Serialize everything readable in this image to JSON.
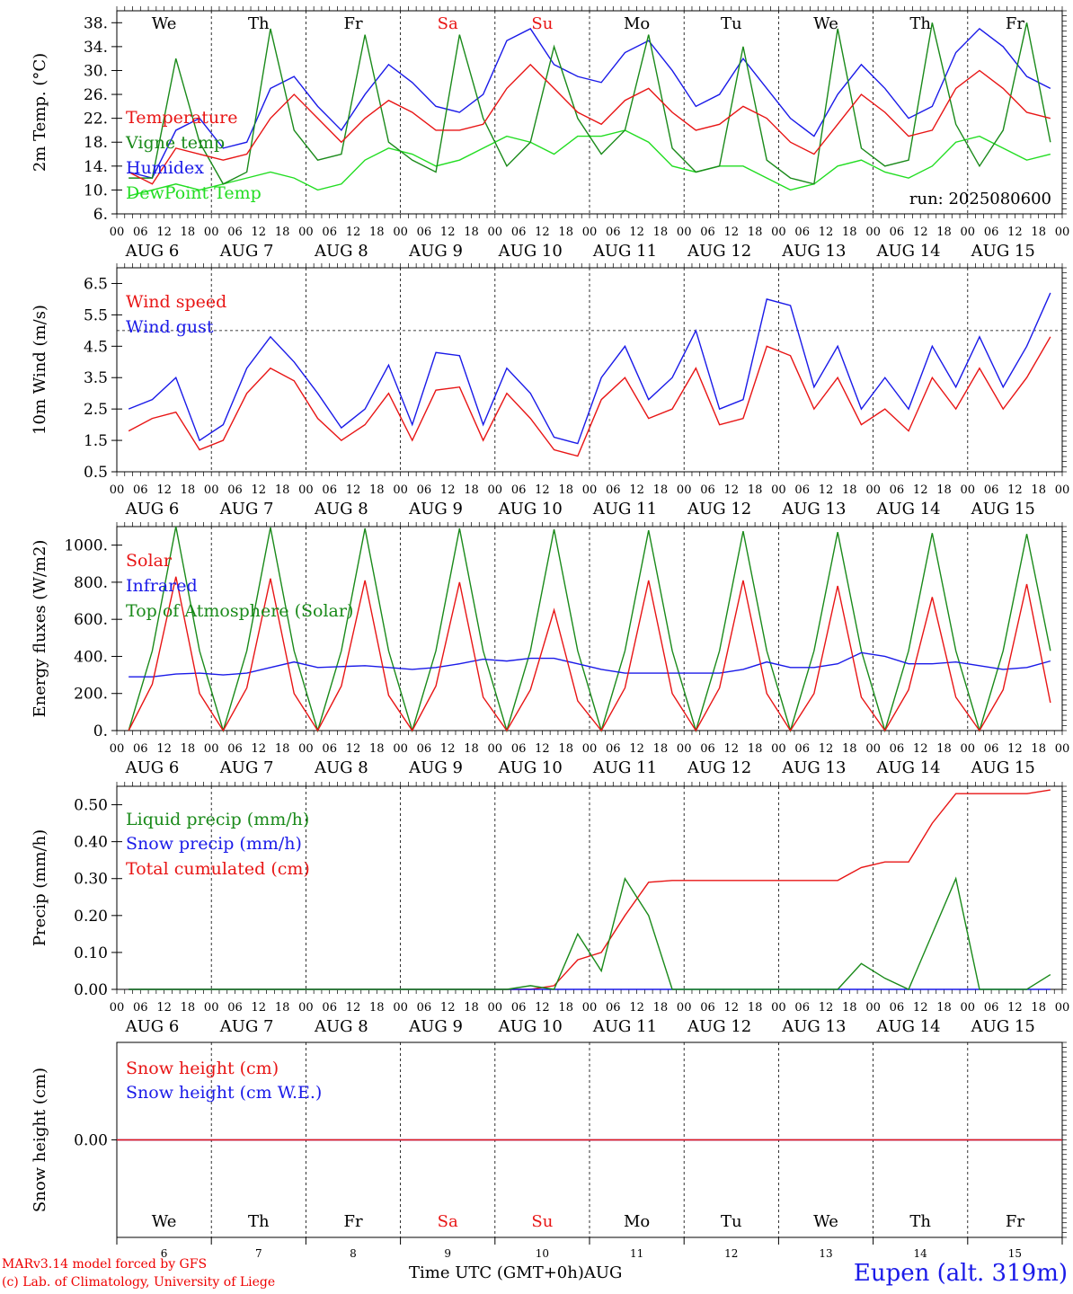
{
  "colors": {
    "red": "#e81515",
    "green": "#1a8a1a",
    "blue": "#1a1ae8",
    "light_green": "#22dd22",
    "black": "#000000"
  },
  "days": [
    "We",
    "Th",
    "Fr",
    "Sa",
    "Su",
    "Mo",
    "Tu",
    "We",
    "Th",
    "Fr"
  ],
  "day_colors": [
    "black",
    "black",
    "black",
    "red",
    "red",
    "black",
    "black",
    "black",
    "black",
    "black"
  ],
  "dates": [
    "AUG  6",
    "AUG  7",
    "AUG  8",
    "AUG  9",
    "AUG 10",
    "AUG 11",
    "AUG 12",
    "AUG 13",
    "AUG 14",
    "AUG 15"
  ],
  "day_numbers": [
    "6",
    "7",
    "8",
    "9",
    "10",
    "11",
    "12",
    "13",
    "14",
    "15"
  ],
  "hour_ticks": [
    "00",
    "06",
    "12",
    "18"
  ],
  "hour_end": "00",
  "footer": {
    "line1": "MARv3.14 model forced by GFS",
    "line2": "(c) Lab. of Climatology, University of Liege",
    "xlabel": "Time UTC (GMT+0h)AUG",
    "location": "Eupen (alt. 319m)"
  },
  "chart_data": [
    {
      "type": "line",
      "ylabel": "2m Temp. (°C)",
      "ylim": [
        6,
        40
      ],
      "yticks": [
        "38.",
        "34.",
        "30.",
        "26.",
        "22.",
        "18.",
        "14.",
        "10.",
        "6."
      ],
      "annotation": "run: 2025080600",
      "x_hours": [
        0,
        6,
        12,
        18,
        24,
        30,
        36,
        42,
        48,
        54,
        60,
        66,
        72,
        78,
        84,
        90,
        96,
        102,
        108,
        114,
        120,
        126,
        132,
        138,
        144,
        150,
        156,
        162,
        168,
        174,
        180,
        186,
        192,
        198,
        204,
        210,
        216,
        222,
        228,
        234
      ],
      "series": [
        {
          "name": "Temperature",
          "color": "red",
          "values": [
            13,
            11,
            17,
            16,
            15,
            16,
            22,
            26,
            22,
            18,
            22,
            25,
            23,
            20,
            20,
            21,
            27,
            31,
            27,
            23,
            21,
            25,
            27,
            23,
            20,
            21,
            24,
            22,
            18,
            16,
            21,
            26,
            23,
            19,
            20,
            27,
            30,
            27,
            23,
            22
          ]
        },
        {
          "name": "Vigne temp",
          "color": "green",
          "values": [
            12,
            12,
            32,
            18,
            11,
            13,
            37,
            20,
            15,
            16,
            36,
            18,
            15,
            13,
            36,
            22,
            14,
            18,
            34,
            22,
            16,
            20,
            36,
            17,
            13,
            14,
            34,
            15,
            12,
            11,
            37,
            17,
            14,
            15,
            38,
            21,
            14,
            20,
            38,
            18
          ]
        },
        {
          "name": "Humidex",
          "color": "blue",
          "values": [
            13,
            12,
            20,
            22,
            17,
            18,
            27,
            29,
            24,
            20,
            26,
            31,
            28,
            24,
            23,
            26,
            35,
            37,
            31,
            29,
            28,
            33,
            35,
            30,
            24,
            26,
            32,
            27,
            22,
            19,
            26,
            31,
            27,
            22,
            24,
            33,
            37,
            34,
            29,
            27
          ]
        },
        {
          "name": "DewPoint Temp",
          "color": "light_green",
          "values": [
            9,
            10,
            11,
            10,
            11,
            12,
            13,
            12,
            10,
            11,
            15,
            17,
            16,
            14,
            15,
            17,
            19,
            18,
            16,
            19,
            19,
            20,
            18,
            14,
            13,
            14,
            14,
            12,
            10,
            11,
            14,
            15,
            13,
            12,
            14,
            18,
            19,
            17,
            15,
            16
          ]
        }
      ]
    },
    {
      "type": "line",
      "ylabel": "10m Wind (m/s)",
      "ylim": [
        0.5,
        7.0
      ],
      "yticks": [
        "6.5",
        "5.5",
        "4.5",
        "3.5",
        "2.5",
        "1.5",
        "0.5"
      ],
      "reference_line": 5.0,
      "x_hours": [
        0,
        6,
        12,
        18,
        24,
        30,
        36,
        42,
        48,
        54,
        60,
        66,
        72,
        78,
        84,
        90,
        96,
        102,
        108,
        114,
        120,
        126,
        132,
        138,
        144,
        150,
        156,
        162,
        168,
        174,
        180,
        186,
        192,
        198,
        204,
        210,
        216,
        222,
        228,
        234
      ],
      "series": [
        {
          "name": "Wind speed",
          "color": "red",
          "values": [
            1.8,
            2.2,
            2.4,
            1.2,
            1.5,
            3.0,
            3.8,
            3.4,
            2.2,
            1.5,
            2.0,
            3.0,
            1.5,
            3.1,
            3.2,
            1.5,
            3.0,
            2.2,
            1.2,
            1.0,
            2.8,
            3.5,
            2.2,
            2.5,
            3.8,
            2.0,
            2.2,
            4.5,
            4.2,
            2.5,
            3.5,
            2.0,
            2.5,
            1.8,
            3.5,
            2.5,
            3.8,
            2.5,
            3.5,
            4.8
          ]
        },
        {
          "name": "Wind gust",
          "color": "blue",
          "values": [
            2.5,
            2.8,
            3.5,
            1.5,
            2.0,
            3.8,
            4.8,
            4.0,
            3.0,
            1.9,
            2.5,
            3.9,
            2.0,
            4.3,
            4.2,
            2.0,
            3.8,
            3.0,
            1.6,
            1.4,
            3.5,
            4.5,
            2.8,
            3.5,
            5.0,
            2.5,
            2.8,
            6.0,
            5.8,
            3.2,
            4.5,
            2.5,
            3.5,
            2.5,
            4.5,
            3.2,
            4.8,
            3.2,
            4.5,
            6.2
          ]
        }
      ]
    },
    {
      "type": "line",
      "ylabel": "Energy fluxes (W/m2)",
      "ylim": [
        0,
        1100
      ],
      "yticks": [
        "1000.",
        "800.",
        "600.",
        "400.",
        "200.",
        "0."
      ],
      "x_hours": [
        0,
        6,
        12,
        18,
        24,
        30,
        36,
        42,
        48,
        54,
        60,
        66,
        72,
        78,
        84,
        90,
        96,
        102,
        108,
        114,
        120,
        126,
        132,
        138,
        144,
        150,
        156,
        162,
        168,
        174,
        180,
        186,
        192,
        198,
        204,
        210,
        216,
        222,
        228,
        234
      ],
      "series": [
        {
          "name": "Solar",
          "color": "red",
          "values": [
            0,
            250,
            830,
            200,
            0,
            230,
            820,
            200,
            0,
            240,
            810,
            190,
            0,
            240,
            800,
            180,
            0,
            220,
            650,
            160,
            0,
            230,
            810,
            200,
            0,
            230,
            810,
            200,
            0,
            200,
            780,
            180,
            0,
            220,
            720,
            180,
            0,
            220,
            790,
            150
          ]
        },
        {
          "name": "Infrared",
          "color": "blue",
          "values": [
            290,
            290,
            305,
            310,
            300,
            310,
            340,
            370,
            340,
            345,
            350,
            340,
            330,
            340,
            360,
            385,
            375,
            390,
            390,
            360,
            330,
            310,
            310,
            310,
            310,
            310,
            330,
            370,
            340,
            340,
            360,
            420,
            400,
            360,
            360,
            370,
            350,
            330,
            340,
            375
          ]
        },
        {
          "name": "Top of Atmosphere (Solar)",
          "color": "green",
          "values": [
            0,
            430,
            1100,
            430,
            0,
            430,
            1095,
            430,
            0,
            430,
            1090,
            430,
            0,
            430,
            1090,
            430,
            0,
            430,
            1085,
            430,
            0,
            430,
            1080,
            430,
            0,
            430,
            1075,
            430,
            0,
            430,
            1070,
            430,
            0,
            430,
            1065,
            430,
            0,
            430,
            1060,
            430
          ]
        }
      ]
    },
    {
      "type": "line",
      "ylabel": "Precip (mm/h)",
      "ylim": [
        0,
        0.55
      ],
      "yticks": [
        "0.50",
        "0.40",
        "0.30",
        "0.20",
        "0.10",
        "0.00"
      ],
      "x_hours": [
        0,
        6,
        12,
        18,
        24,
        30,
        36,
        42,
        48,
        54,
        60,
        66,
        72,
        78,
        84,
        90,
        96,
        102,
        108,
        114,
        120,
        126,
        132,
        138,
        144,
        150,
        156,
        162,
        168,
        174,
        180,
        186,
        192,
        198,
        204,
        210,
        216,
        222,
        228,
        234
      ],
      "series": [
        {
          "name": "Liquid precip (mm/h)",
          "color": "green",
          "values": [
            0,
            0,
            0,
            0,
            0,
            0,
            0,
            0,
            0,
            0,
            0,
            0,
            0,
            0,
            0,
            0,
            0,
            0.01,
            0,
            0.15,
            0.05,
            0.3,
            0.2,
            0,
            0,
            0,
            0,
            0,
            0,
            0,
            0,
            0.07,
            0.03,
            0,
            0.15,
            0.3,
            0,
            0,
            0,
            0.04
          ]
        },
        {
          "name": "Snow precip (mm/h)",
          "color": "blue",
          "values": [
            0,
            0,
            0,
            0,
            0,
            0,
            0,
            0,
            0,
            0,
            0,
            0,
            0,
            0,
            0,
            0,
            0,
            0,
            0,
            0,
            0,
            0,
            0,
            0,
            0,
            0,
            0,
            0,
            0,
            0,
            0,
            0,
            0,
            0,
            0,
            0,
            0,
            0,
            0,
            0
          ]
        },
        {
          "name": "Total cumulated (cm)",
          "color": "red",
          "values": [
            0,
            0,
            0,
            0,
            0,
            0,
            0,
            0,
            0,
            0,
            0,
            0,
            0,
            0,
            0,
            0,
            0,
            0,
            0.01,
            0.08,
            0.1,
            0.2,
            0.29,
            0.295,
            0.295,
            0.295,
            0.295,
            0.295,
            0.295,
            0.295,
            0.295,
            0.33,
            0.345,
            0.345,
            0.45,
            0.53,
            0.53,
            0.53,
            0.53,
            0.54
          ]
        }
      ]
    },
    {
      "type": "line",
      "ylabel": "Snow height (cm)",
      "ylim": [
        -1,
        1
      ],
      "yticks": [
        "0.00"
      ],
      "x_hours": [
        0,
        240
      ],
      "series": [
        {
          "name": "Snow height (cm)",
          "color": "red",
          "values": [
            0,
            0
          ]
        },
        {
          "name": "Snow height (cm W.E.)",
          "color": "blue",
          "values": [
            0,
            0
          ]
        }
      ]
    }
  ]
}
